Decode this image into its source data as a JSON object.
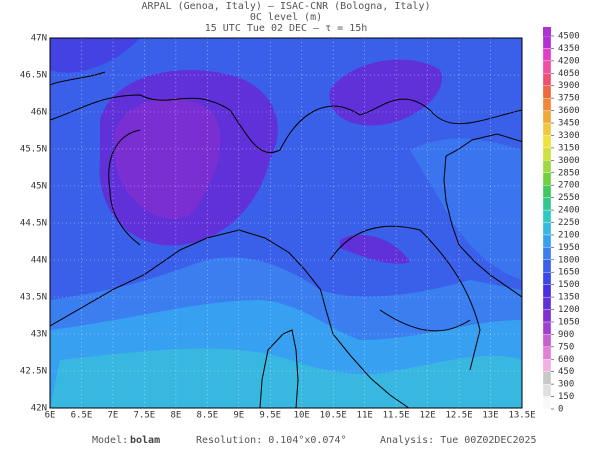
{
  "header": {
    "line1": "ARPAL (Genoa, Italy)  —  ISAC-CNR (Bologna, Italy)",
    "line2": "0C level (m)",
    "line3": "15 UTC Tue 02 DEC  —  τ = 15h"
  },
  "map": {
    "lat_labels": [
      "47N",
      "46.5N",
      "46N",
      "45.5N",
      "45N",
      "44.5N",
      "44N",
      "43.5N",
      "43N",
      "42.5N",
      "42N"
    ],
    "lon_labels": [
      "6E",
      "6.5E",
      "7E",
      "7.5E",
      "8E",
      "8.5E",
      "9E",
      "9.5E",
      "10E",
      "10.5E",
      "11E",
      "11.5E",
      "12E",
      "12.5E",
      "13E",
      "13.5E"
    ]
  },
  "colorbar": {
    "levels": [
      0,
      150,
      300,
      450,
      600,
      750,
      900,
      1050,
      1200,
      1350,
      1500,
      1650,
      1800,
      1950,
      2100,
      2250,
      2400,
      2550,
      2700,
      2850,
      3000,
      3150,
      3300,
      3450,
      3600,
      3750,
      3900,
      4050,
      4200,
      4350,
      4500
    ],
    "colors": [
      "#f8f8f8",
      "#e0e0e0",
      "#c8c8c8",
      "#f0b0e0",
      "#e080d8",
      "#c860d0",
      "#a040d0",
      "#8030d0",
      "#6030d8",
      "#4a30e0",
      "#3a48e6",
      "#3a60ea",
      "#3a7ef0",
      "#38a0f0",
      "#38b8e0",
      "#30c8c0",
      "#30c890",
      "#40c860",
      "#70d040",
      "#a0d840",
      "#d0e040",
      "#f0e040",
      "#f0c840",
      "#f0a838",
      "#f08838",
      "#f06840",
      "#f05070",
      "#f050a0",
      "#e040c8",
      "#b030d0"
    ]
  },
  "footer": {
    "model_label": "Model:",
    "model": "bolam",
    "resolution": "Resolution: 0.104°x0.074°",
    "analysis": "Analysis: Tue 00Z02DEC2025"
  }
}
